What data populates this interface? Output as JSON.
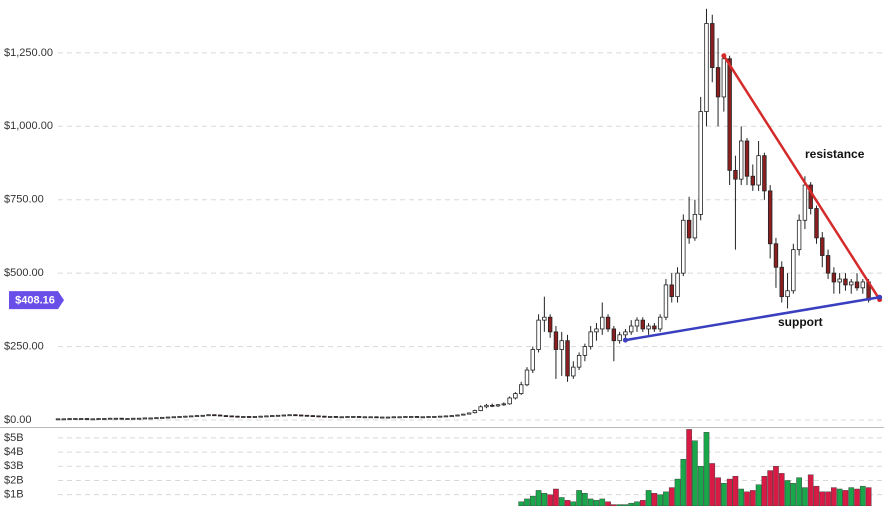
{
  "chart_data": {
    "type": "candlestick",
    "open": [
      4,
      4,
      4,
      5,
      5,
      5,
      4,
      4,
      5,
      5,
      6,
      6,
      5,
      5,
      6,
      6,
      7,
      7,
      8,
      9,
      10,
      11,
      12,
      13,
      14,
      15,
      16,
      18,
      17,
      15,
      14,
      13,
      12,
      12,
      11,
      12,
      13,
      14,
      15,
      16,
      17,
      18,
      17,
      16,
      15,
      14,
      13,
      12,
      12,
      11,
      11,
      12,
      12,
      11,
      11,
      11,
      10,
      10,
      10,
      11,
      11,
      12,
      12,
      11,
      11,
      12,
      12,
      13,
      14,
      15,
      17,
      20,
      25,
      32,
      45,
      50,
      48,
      52,
      55,
      75,
      90,
      120,
      170,
      240,
      340,
      350,
      300,
      240,
      270,
      150,
      180,
      220,
      250,
      300,
      310,
      350,
      310,
      270,
      290,
      300,
      320,
      340,
      310,
      320,
      310,
      350,
      460,
      420,
      500,
      680,
      620,
      700,
      1050,
      1350,
      1200,
      1100,
      1230,
      850,
      820,
      950,
      830,
      800,
      900,
      780,
      600,
      520,
      420,
      440,
      580,
      680,
      800,
      720,
      620,
      560,
      500,
      470,
      480,
      460,
      470,
      450,
      470
    ],
    "high": [
      5,
      5,
      6,
      6,
      6,
      6,
      5,
      6,
      6,
      7,
      7,
      7,
      6,
      7,
      7,
      8,
      8,
      9,
      10,
      11,
      12,
      13,
      14,
      15,
      16,
      17,
      19,
      19,
      18,
      16,
      15,
      14,
      13,
      13,
      13,
      14,
      15,
      16,
      17,
      18,
      19,
      19,
      18,
      17,
      16,
      15,
      14,
      13,
      13,
      12,
      13,
      13,
      13,
      12,
      12,
      12,
      11,
      11,
      12,
      12,
      13,
      13,
      13,
      12,
      13,
      13,
      14,
      15,
      16,
      18,
      21,
      25,
      35,
      50,
      55,
      56,
      54,
      60,
      80,
      95,
      130,
      180,
      250,
      360,
      420,
      360,
      320,
      300,
      290,
      200,
      230,
      260,
      320,
      330,
      400,
      360,
      320,
      300,
      310,
      340,
      350,
      350,
      330,
      330,
      360,
      480,
      500,
      520,
      700,
      760,
      750,
      1100,
      1400,
      1380,
      1300,
      1240,
      1240,
      900,
      1000,
      960,
      870,
      950,
      910,
      800,
      620,
      540,
      500,
      600,
      700,
      830,
      810,
      730,
      640,
      580,
      520,
      500,
      500,
      480,
      500,
      480,
      480
    ],
    "low": [
      3,
      3,
      3,
      4,
      4,
      3,
      3,
      3,
      4,
      4,
      5,
      4,
      4,
      4,
      5,
      5,
      6,
      6,
      7,
      8,
      9,
      10,
      11,
      12,
      13,
      14,
      15,
      16,
      14,
      13,
      12,
      11,
      11,
      10,
      10,
      11,
      12,
      13,
      14,
      15,
      16,
      16,
      15,
      14,
      13,
      12,
      11,
      11,
      10,
      10,
      10,
      11,
      10,
      10,
      10,
      9,
      9,
      9,
      9,
      10,
      10,
      11,
      10,
      10,
      10,
      11,
      11,
      12,
      13,
      14,
      16,
      19,
      22,
      30,
      40,
      44,
      44,
      48,
      52,
      70,
      85,
      115,
      160,
      230,
      300,
      280,
      140,
      150,
      130,
      140,
      170,
      200,
      240,
      270,
      290,
      300,
      200,
      260,
      280,
      290,
      300,
      300,
      290,
      300,
      300,
      340,
      400,
      400,
      490,
      600,
      610,
      680,
      1000,
      1150,
      1000,
      1050,
      800,
      580,
      800,
      800,
      780,
      780,
      750,
      550,
      450,
      400,
      380,
      430,
      560,
      650,
      700,
      600,
      520,
      480,
      430,
      430,
      440,
      430,
      440,
      430,
      400
    ],
    "close": [
      4,
      4,
      5,
      5,
      5,
      4,
      4,
      5,
      5,
      6,
      6,
      5,
      5,
      6,
      6,
      7,
      7,
      8,
      9,
      10,
      11,
      12,
      13,
      14,
      15,
      16,
      18,
      17,
      15,
      14,
      13,
      12,
      12,
      11,
      12,
      13,
      14,
      15,
      16,
      17,
      18,
      17,
      16,
      15,
      14,
      13,
      12,
      12,
      11,
      11,
      12,
      12,
      11,
      11,
      11,
      10,
      10,
      10,
      11,
      11,
      12,
      12,
      11,
      11,
      12,
      12,
      13,
      14,
      15,
      17,
      20,
      24,
      32,
      45,
      50,
      48,
      52,
      55,
      75,
      90,
      120,
      170,
      240,
      340,
      350,
      300,
      240,
      270,
      150,
      180,
      220,
      250,
      300,
      310,
      350,
      310,
      270,
      290,
      300,
      320,
      340,
      310,
      320,
      310,
      350,
      460,
      420,
      500,
      680,
      620,
      700,
      1050,
      1350,
      1200,
      1100,
      1230,
      850,
      820,
      950,
      830,
      800,
      900,
      780,
      600,
      520,
      420,
      440,
      580,
      680,
      800,
      720,
      620,
      560,
      500,
      470,
      480,
      460,
      470,
      450,
      470,
      408
    ],
    "volume": [
      null,
      null,
      null,
      null,
      null,
      null,
      null,
      null,
      null,
      null,
      null,
      null,
      null,
      null,
      null,
      null,
      null,
      null,
      null,
      null,
      null,
      null,
      null,
      null,
      null,
      null,
      null,
      null,
      null,
      null,
      null,
      null,
      null,
      null,
      null,
      null,
      null,
      null,
      null,
      null,
      null,
      null,
      null,
      null,
      null,
      null,
      null,
      null,
      null,
      null,
      null,
      null,
      null,
      null,
      null,
      null,
      null,
      null,
      null,
      null,
      null,
      null,
      null,
      null,
      null,
      null,
      null,
      null,
      null,
      null,
      null,
      null,
      null,
      null,
      null,
      null,
      null,
      null,
      null,
      null,
      0.5,
      0.7,
      0.9,
      1.3,
      1.1,
      1.0,
      1.4,
      0.8,
      0.6,
      0.5,
      1.3,
      1.1,
      0.7,
      0.6,
      0.7,
      0.5,
      0.3,
      0.3,
      0.3,
      0.4,
      0.5,
      0.6,
      1.3,
      1.1,
      1.0,
      1.2,
      1.5,
      2.1,
      3.5,
      5.6,
      4.8,
      3.0,
      5.4,
      3.2,
      2.2,
      1.8,
      2.1,
      2.3,
      1.4,
      1.2,
      1.3,
      1.7,
      2.3,
      2.7,
      3.0,
      2.5,
      2.0,
      1.8,
      2.2,
      1.5,
      2.4,
      1.6,
      1.2,
      1.2,
      1.5,
      1.4,
      1.3,
      1.5,
      1.4,
      1.6,
      1.5
    ],
    "up_color": "#ffffff",
    "down_color": "#8b1f1f",
    "volume_up_color": "#1aa64a",
    "volume_down_color": "#d81b45",
    "ylim": [
      0,
      1430
    ],
    "yticks": [
      {
        "value": 0,
        "label": "$0.00"
      },
      {
        "value": 250,
        "label": "$250.00"
      },
      {
        "value": 500,
        "label": "$500.00"
      },
      {
        "value": 750,
        "label": "$750.00"
      },
      {
        "value": 1000,
        "label": "$1,000.00"
      },
      {
        "value": 1250,
        "label": "$1,250.00"
      }
    ],
    "y2lim": [
      0.2,
      5.7
    ],
    "y2ticks": [
      {
        "value": 1,
        "label": "$1B"
      },
      {
        "value": 2,
        "label": "$2B"
      },
      {
        "value": 3,
        "label": "$3B"
      },
      {
        "value": 4,
        "label": "$4B"
      },
      {
        "value": 5,
        "label": "$5B"
      }
    ],
    "grid": true,
    "current_price": {
      "value": 408.16,
      "label": "$408.16",
      "color": "#6a4ee8"
    },
    "trendlines": [
      {
        "label": "resistance",
        "color": "#d42a2a",
        "from": [
          115,
          1240
        ],
        "to": [
          141.9,
          410
        ]
      },
      {
        "label": "support",
        "color": "#3a3fbf",
        "from": [
          98,
          272
        ],
        "to": [
          141.9,
          418
        ]
      }
    ]
  }
}
